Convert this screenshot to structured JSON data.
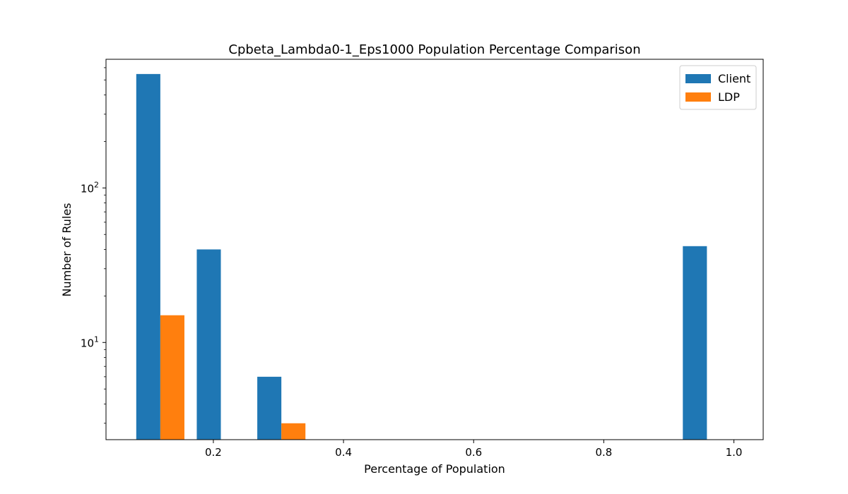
{
  "chart_data": {
    "type": "bar",
    "title": "Cpbeta_Lambda0-1_Eps1000 Population Percentage Comparison",
    "xlabel": "Percentage of Population",
    "ylabel": "Number of Rules",
    "yscale": "log",
    "xlim": [
      0.035,
      1.045
    ],
    "ylim": [
      2.35,
      680
    ],
    "x_ticks": [
      {
        "value": 0.2,
        "label": "0.2"
      },
      {
        "value": 0.4,
        "label": "0.4"
      },
      {
        "value": 0.6,
        "label": "0.6"
      },
      {
        "value": 0.8,
        "label": "0.8"
      },
      {
        "value": 1.0,
        "label": "1.0"
      }
    ],
    "y_ticks": [
      {
        "value": 10,
        "base": "10",
        "exp": "1"
      },
      {
        "value": 100,
        "base": "10",
        "exp": "2"
      }
    ],
    "bar_width": 0.037,
    "series": [
      {
        "name": "Client",
        "color": "#1f77b4",
        "points": [
          {
            "x": 0.1,
            "y": 546
          },
          {
            "x": 0.193,
            "y": 40
          },
          {
            "x": 0.286,
            "y": 6
          },
          {
            "x": 0.94,
            "y": 42
          }
        ]
      },
      {
        "name": "LDP",
        "color": "#ff7f0e",
        "points": [
          {
            "x": 0.137,
            "y": 15
          },
          {
            "x": 0.323,
            "y": 3
          }
        ]
      }
    ],
    "legend_position": "top-right",
    "grid": false
  }
}
